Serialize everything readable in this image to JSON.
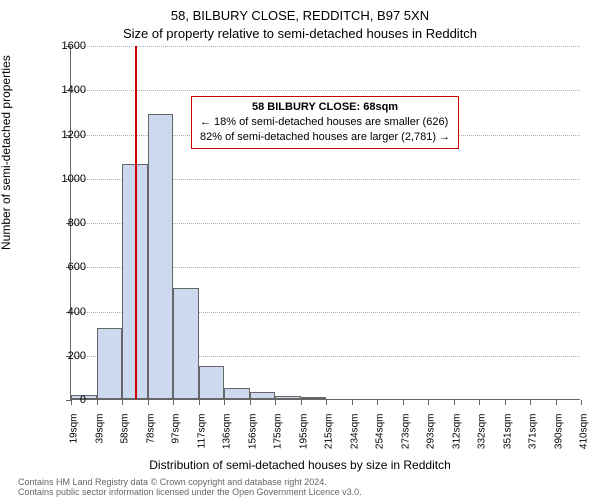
{
  "title_line1": "58, BILBURY CLOSE, REDDITCH, B97 5XN",
  "title_line2": "Size of property relative to semi-detached houses in Redditch",
  "ylabel": "Number of semi-detached properties",
  "xlabel": "Distribution of semi-detached houses by size in Redditch",
  "footer_line1": "Contains HM Land Registry data © Crown copyright and database right 2024.",
  "footer_line2": "Contains public sector information licensed under the Open Government Licence v3.0.",
  "infobox": {
    "line1": "58 BILBURY CLOSE: 68sqm",
    "line2": "← 18% of semi-detached houses are smaller (626)",
    "line3": "82% of semi-detached houses are larger (2,781) →"
  },
  "chart": {
    "type": "histogram",
    "bar_color": "#cdd9ee",
    "bar_border": "#666666",
    "grid_color": "#b0b0b0",
    "axis_color": "#666666",
    "marker_color": "#cc0000",
    "background_color": "#ffffff",
    "font_family": "Arial",
    "title_fontsize": 13,
    "label_fontsize": 12,
    "tick_fontsize": 11,
    "ylim": [
      0,
      1600
    ],
    "ytick_step": 200,
    "yticks": [
      0,
      200,
      400,
      600,
      800,
      1000,
      1200,
      1400,
      1600
    ],
    "xticks": [
      "19sqm",
      "39sqm",
      "58sqm",
      "78sqm",
      "97sqm",
      "117sqm",
      "136sqm",
      "156sqm",
      "175sqm",
      "195sqm",
      "215sqm",
      "234sqm",
      "254sqm",
      "273sqm",
      "293sqm",
      "312sqm",
      "332sqm",
      "351sqm",
      "371sqm",
      "390sqm",
      "410sqm"
    ],
    "x_step_sqm": 19.55,
    "x_min": 19,
    "x_max": 410,
    "marker_value_sqm": 68,
    "bars": {
      "categories": [
        "19",
        "39",
        "58",
        "78",
        "97",
        "117",
        "136",
        "156",
        "175",
        "195",
        "215",
        "234",
        "254",
        "273",
        "293",
        "312",
        "332",
        "351",
        "371",
        "390"
      ],
      "values": [
        20,
        320,
        1060,
        1290,
        500,
        150,
        50,
        30,
        15,
        10,
        0,
        0,
        0,
        0,
        0,
        0,
        0,
        0,
        0,
        0
      ]
    }
  }
}
